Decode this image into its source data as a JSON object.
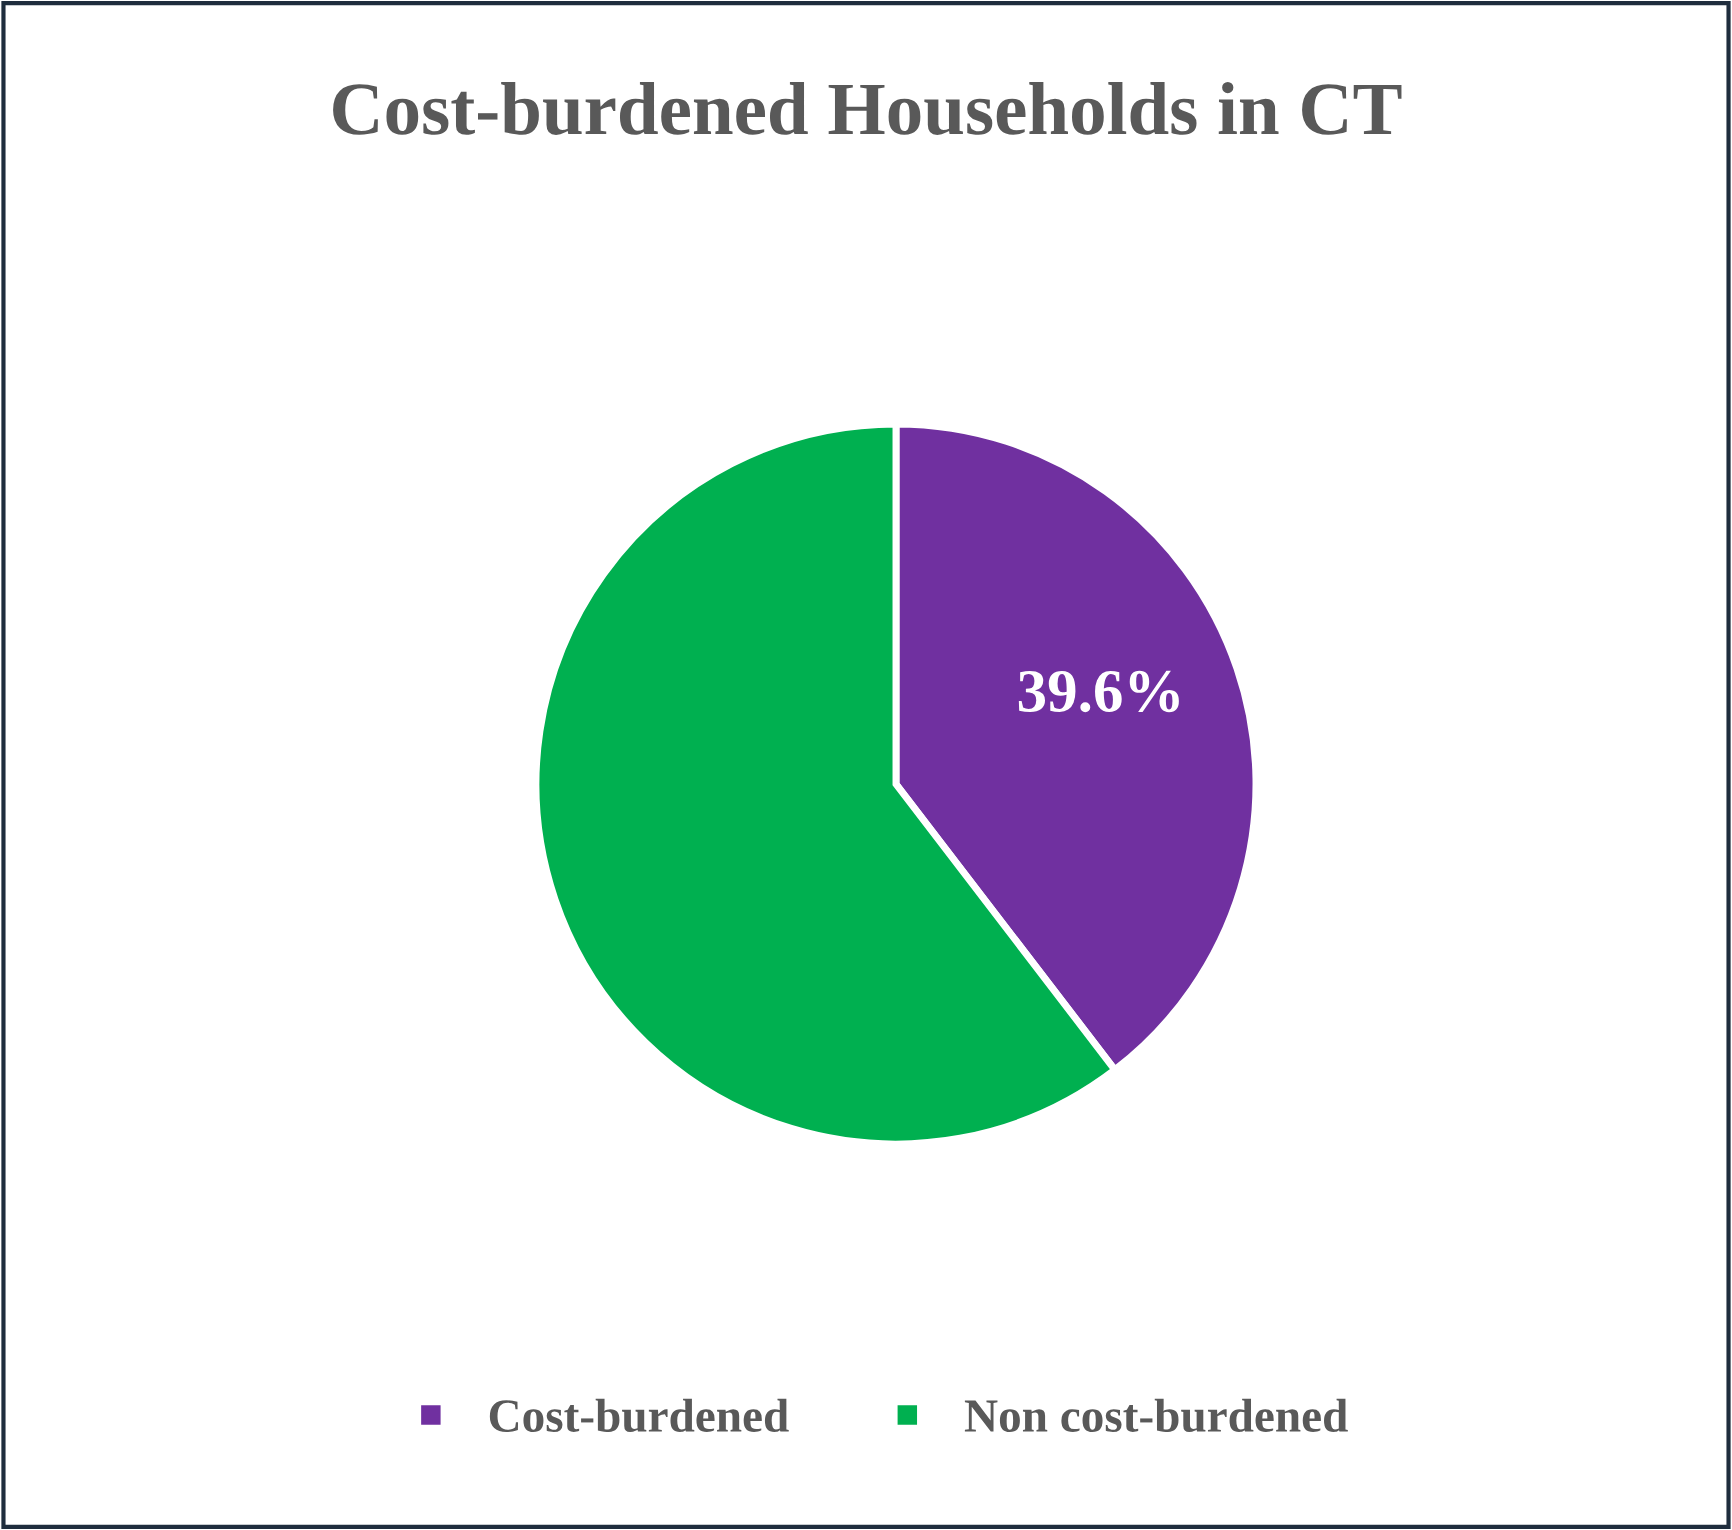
{
  "chart_data": {
    "type": "pie",
    "title": "Cost-burdened Households in CT",
    "categories": [
      "Cost-burdened",
      "Non cost-burdened"
    ],
    "values": [
      39.6,
      60.4
    ],
    "colors": [
      "#7030a0",
      "#00b050"
    ],
    "value_labels": [
      "39.6%",
      null
    ],
    "legend": "bottom"
  }
}
